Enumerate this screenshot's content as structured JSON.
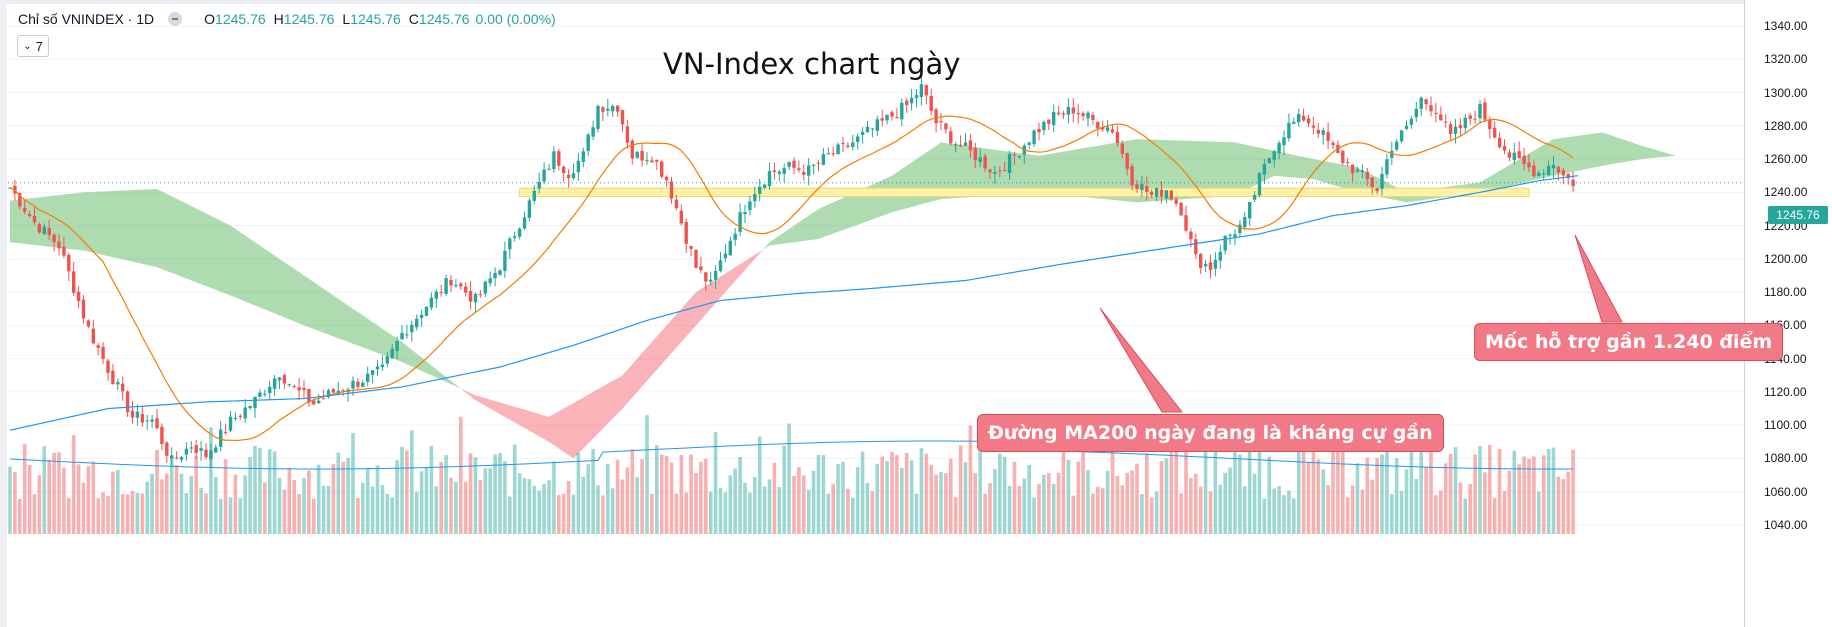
{
  "legend": {
    "symbol": "Chỉ số VNINDEX · 1D",
    "o_label": "O",
    "o_value": "1245.76",
    "h_label": "H",
    "h_value": "1245.76",
    "l_label": "L",
    "l_value": "1245.76",
    "c_label": "C",
    "c_value": "1245.76",
    "change": "0.00 (0.00%)",
    "collapse_label": "7"
  },
  "chart_data": {
    "type": "candlestick",
    "title": "VN-Index chart ngày",
    "y_ticks": [
      "1340.00",
      "1320.00",
      "1300.00",
      "1280.00",
      "1260.00",
      "1240.00",
      "1220.00",
      "1200.00",
      "1180.00",
      "1160.00",
      "1140.00",
      "1120.00",
      "1100.00",
      "1080.00",
      "1060.00",
      "1040.00"
    ],
    "ylim": [
      1033,
      1350
    ],
    "last_price": "1245.76",
    "support_level": 1240,
    "close_anchors": [
      [
        0,
        1243
      ],
      [
        5,
        1222
      ],
      [
        10,
        1208
      ],
      [
        16,
        1158
      ],
      [
        20,
        1134
      ],
      [
        25,
        1105
      ],
      [
        29,
        1103
      ],
      [
        33,
        1078
      ],
      [
        37,
        1088
      ],
      [
        40,
        1082
      ],
      [
        45,
        1102
      ],
      [
        50,
        1115
      ],
      [
        55,
        1132
      ],
      [
        58,
        1122
      ],
      [
        62,
        1113
      ],
      [
        66,
        1120
      ],
      [
        71,
        1126
      ],
      [
        76,
        1133
      ],
      [
        80,
        1155
      ],
      [
        85,
        1172
      ],
      [
        90,
        1188
      ],
      [
        95,
        1175
      ],
      [
        100,
        1196
      ],
      [
        104,
        1222
      ],
      [
        108,
        1245
      ],
      [
        111,
        1262
      ],
      [
        114,
        1252
      ],
      [
        117,
        1262
      ],
      [
        120,
        1292
      ],
      [
        124,
        1292
      ],
      [
        127,
        1262
      ],
      [
        131,
        1262
      ],
      [
        134,
        1248
      ],
      [
        137,
        1222
      ],
      [
        140,
        1195
      ],
      [
        143,
        1184
      ],
      [
        147,
        1212
      ],
      [
        151,
        1238
      ],
      [
        155,
        1252
      ],
      [
        159,
        1255
      ],
      [
        163,
        1253
      ],
      [
        167,
        1262
      ],
      [
        171,
        1268
      ],
      [
        175,
        1276
      ],
      [
        179,
        1284
      ],
      [
        183,
        1292
      ],
      [
        186,
        1303
      ],
      [
        189,
        1282
      ],
      [
        193,
        1270
      ],
      [
        197,
        1262
      ],
      [
        201,
        1252
      ],
      [
        205,
        1262
      ],
      [
        209,
        1276
      ],
      [
        213,
        1285
      ],
      [
        217,
        1290
      ],
      [
        221,
        1283
      ],
      [
        225,
        1278
      ],
      [
        229,
        1248
      ],
      [
        233,
        1238
      ],
      [
        236,
        1242
      ],
      [
        239,
        1230
      ],
      [
        242,
        1200
      ],
      [
        245,
        1195
      ],
      [
        248,
        1212
      ],
      [
        252,
        1222
      ],
      [
        255,
        1248
      ],
      [
        258,
        1268
      ],
      [
        261,
        1280
      ],
      [
        264,
        1285
      ],
      [
        267,
        1278
      ],
      [
        271,
        1262
      ],
      [
        275,
        1252
      ],
      [
        279,
        1242
      ],
      [
        282,
        1268
      ],
      [
        285,
        1278
      ],
      [
        288,
        1296
      ],
      [
        291,
        1290
      ],
      [
        294,
        1273
      ],
      [
        297,
        1282
      ],
      [
        300,
        1290
      ],
      [
        303,
        1275
      ],
      [
        306,
        1262
      ],
      [
        309,
        1256
      ],
      [
        312,
        1252
      ],
      [
        315,
        1258
      ],
      [
        317,
        1250
      ],
      [
        319,
        1246
      ]
    ],
    "ma200_anchors": [
      [
        0,
        1097
      ],
      [
        20,
        1110
      ],
      [
        40,
        1114
      ],
      [
        60,
        1116
      ],
      [
        80,
        1123
      ],
      [
        100,
        1135
      ],
      [
        115,
        1148
      ],
      [
        130,
        1163
      ],
      [
        145,
        1175
      ],
      [
        160,
        1179
      ],
      [
        175,
        1182
      ],
      [
        195,
        1187
      ],
      [
        215,
        1197
      ],
      [
        235,
        1206
      ],
      [
        255,
        1215
      ],
      [
        270,
        1226
      ],
      [
        285,
        1232
      ],
      [
        300,
        1240
      ],
      [
        312,
        1247
      ],
      [
        320,
        1250
      ]
    ],
    "ichimoku_span_a_anchors": [
      [
        0,
        1235
      ],
      [
        15,
        1240
      ],
      [
        30,
        1242
      ],
      [
        45,
        1220
      ],
      [
        60,
        1190
      ],
      [
        80,
        1150
      ],
      [
        95,
        1115
      ],
      [
        110,
        1090
      ],
      [
        115,
        1080
      ],
      [
        125,
        1110
      ],
      [
        140,
        1160
      ],
      [
        155,
        1210
      ],
      [
        165,
        1230
      ],
      [
        180,
        1250
      ],
      [
        190,
        1270
      ],
      [
        210,
        1262
      ],
      [
        230,
        1272
      ],
      [
        250,
        1270
      ],
      [
        258,
        1265
      ],
      [
        266,
        1260
      ],
      [
        275,
        1255
      ],
      [
        285,
        1240
      ],
      [
        300,
        1246
      ],
      [
        315,
        1272
      ],
      [
        325,
        1276
      ],
      [
        333,
        1268
      ],
      [
        340,
        1262
      ]
    ],
    "ichimoku_span_b_anchors": [
      [
        0,
        1210
      ],
      [
        15,
        1205
      ],
      [
        30,
        1195
      ],
      [
        45,
        1178
      ],
      [
        60,
        1160
      ],
      [
        80,
        1138
      ],
      [
        95,
        1118
      ],
      [
        110,
        1105
      ],
      [
        125,
        1130
      ],
      [
        140,
        1180
      ],
      [
        155,
        1208
      ],
      [
        165,
        1212
      ],
      [
        180,
        1228
      ],
      [
        190,
        1236
      ],
      [
        210,
        1240
      ],
      [
        230,
        1234
      ],
      [
        250,
        1238
      ],
      [
        258,
        1250
      ],
      [
        266,
        1248
      ],
      [
        275,
        1240
      ],
      [
        285,
        1234
      ],
      [
        300,
        1240
      ],
      [
        315,
        1250
      ],
      [
        325,
        1256
      ],
      [
        333,
        1260
      ],
      [
        340,
        1262
      ]
    ],
    "annotations": [
      {
        "text": "Đường MA200 ngày đang là kháng cự gần"
      },
      {
        "text": "Mốc hỗ trợ gần 1.240 điểm"
      }
    ]
  },
  "colors": {
    "up": "#26a69a",
    "down": "#ef5350",
    "ma20": "#f57c00",
    "ma200": "#2196f3",
    "cloud_bull": "#4caf50",
    "cloud_bear": "#f23645",
    "support_band": "#fff2a8",
    "callout_bg": "#f27a86"
  }
}
